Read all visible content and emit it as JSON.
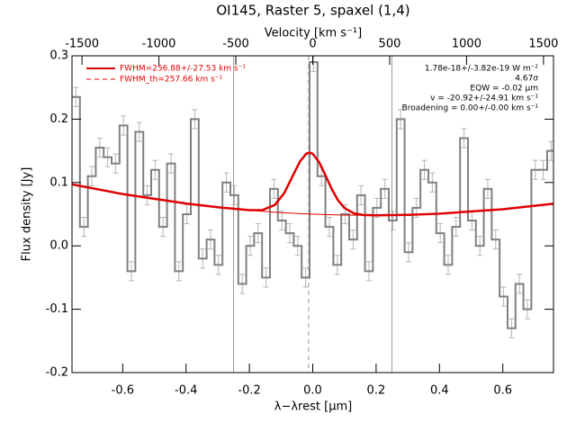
{
  "chart_data": {
    "type": "step",
    "title": "OI145, Raster 5, spaxel (1,4)",
    "x2label": "Velocity [km s⁻¹]",
    "xlabel": "λ−λrest [μm]",
    "ylabel": "Flux density [Jy]",
    "xlim": [
      -0.76,
      0.76
    ],
    "xticks": [
      -0.6,
      -0.4,
      -0.2,
      {
        "value": 0,
        "label": "0.0"
      },
      0.2,
      0.4,
      0.6
    ],
    "x2lim": [
      -1565,
      1565
    ],
    "x2ticks": [
      -1500,
      -1000,
      -500,
      0,
      500,
      1000,
      1500
    ],
    "ylim": [
      -0.2,
      0.3
    ],
    "yticks": [
      -0.2,
      -0.1,
      {
        "value": 0,
        "label": "0.0"
      },
      0.1,
      0.2,
      0.3
    ],
    "bin_width": 0.025,
    "color": "#808080",
    "error_color": "#b4b4b4",
    "x": [
      -0.7475,
      -0.7225,
      -0.6975,
      -0.6725,
      -0.6475,
      -0.6225,
      -0.5975,
      -0.5725,
      -0.5475,
      -0.5225,
      -0.4975,
      -0.4725,
      -0.4475,
      -0.4225,
      -0.3975,
      -0.3725,
      -0.3475,
      -0.3225,
      -0.2975,
      -0.2725,
      -0.2475,
      -0.2225,
      -0.1975,
      -0.1725,
      -0.1475,
      -0.1225,
      -0.0975,
      -0.0725,
      -0.0475,
      -0.0225,
      0.0025,
      0.0275,
      0.0525,
      0.0775,
      0.1025,
      0.1275,
      0.1525,
      0.1775,
      0.2025,
      0.2275,
      0.2525,
      0.2775,
      0.3025,
      0.3275,
      0.3525,
      0.3775,
      0.4025,
      0.4275,
      0.4525,
      0.4775,
      0.5025,
      0.5275,
      0.5525,
      0.5775,
      0.6025,
      0.6275,
      0.6525,
      0.6775,
      0.7025,
      0.7275,
      0.7525
    ],
    "values": [
      0.235,
      0.03,
      0.11,
      0.155,
      0.14,
      0.13,
      0.19,
      -0.04,
      0.18,
      0.08,
      0.12,
      0.03,
      0.13,
      -0.04,
      0.05,
      0.2,
      -0.02,
      0.01,
      -0.03,
      0.1,
      0.08,
      -0.06,
      0.0,
      0.02,
      -0.05,
      0.09,
      0.04,
      0.02,
      0.0,
      -0.05,
      0.29,
      0.11,
      0.03,
      -0.03,
      0.05,
      0.01,
      0.08,
      -0.04,
      0.06,
      0.09,
      0.04,
      0.2,
      -0.01,
      0.06,
      0.12,
      0.1,
      0.02,
      -0.03,
      0.03,
      0.17,
      0.04,
      0.0,
      0.09,
      0.01,
      -0.08,
      -0.13,
      -0.06,
      -0.1,
      0.12,
      0.12,
      0.15
    ],
    "errors": [
      0.015,
      0.015,
      0.015,
      0.015,
      0.015,
      0.015,
      0.015,
      0.015,
      0.015,
      0.015,
      0.015,
      0.015,
      0.015,
      0.015,
      0.015,
      0.015,
      0.015,
      0.015,
      0.015,
      0.015,
      0.015,
      0.015,
      0.015,
      0.015,
      0.015,
      0.015,
      0.015,
      0.015,
      0.015,
      0.015,
      0.015,
      0.015,
      0.015,
      0.015,
      0.015,
      0.015,
      0.015,
      0.015,
      0.015,
      0.015,
      0.015,
      0.015,
      0.015,
      0.015,
      0.015,
      0.015,
      0.015,
      0.015,
      0.015,
      0.015,
      0.015,
      0.015,
      0.015,
      0.015,
      0.015,
      0.015,
      0.015,
      0.015,
      0.015,
      0.015,
      0.015
    ],
    "fit": {
      "color": "#e00000",
      "x": [
        -0.76,
        -0.6,
        -0.4,
        -0.3,
        -0.2,
        -0.16,
        -0.12,
        -0.09,
        -0.06,
        -0.04,
        -0.02,
        -0.01,
        0.0,
        0.02,
        0.04,
        0.06,
        0.08,
        0.1,
        0.13,
        0.16,
        0.2,
        0.3,
        0.4,
        0.6,
        0.76
      ],
      "values": [
        0.097,
        0.0818,
        0.0668,
        0.061,
        0.0564,
        0.0564,
        0.0645,
        0.0833,
        0.1136,
        0.1335,
        0.1457,
        0.1472,
        0.1453,
        0.1322,
        0.1115,
        0.0896,
        0.0718,
        0.0599,
        0.0513,
        0.0488,
        0.0482,
        0.049,
        0.0508,
        0.0578,
        0.0666
      ]
    },
    "continuum": {
      "color": "#e00000",
      "x": [
        -0.2,
        -0.1,
        0.0,
        0.1,
        0.2
      ],
      "values": [
        0.0562,
        0.0525,
        0.05,
        0.0486,
        0.0482
      ]
    },
    "vlines": [
      -0.25,
      0.25
    ],
    "center_line": -0.013,
    "legend": [
      {
        "label": "FWHM=256.88+/-27.53 km s⁻¹",
        "dashed": false
      },
      {
        "label": "FWHM_th=257.66 km s⁻¹",
        "dashed": true
      }
    ],
    "annotations": [
      "1.78e-18+/-3.82e-19 W m⁻²",
      "4.67σ",
      "EQW = -0.02 μm",
      "v = -20.92+/-24.91 km s⁻¹",
      "Broadening = 0.00+/-0.00 km s⁻¹"
    ]
  }
}
